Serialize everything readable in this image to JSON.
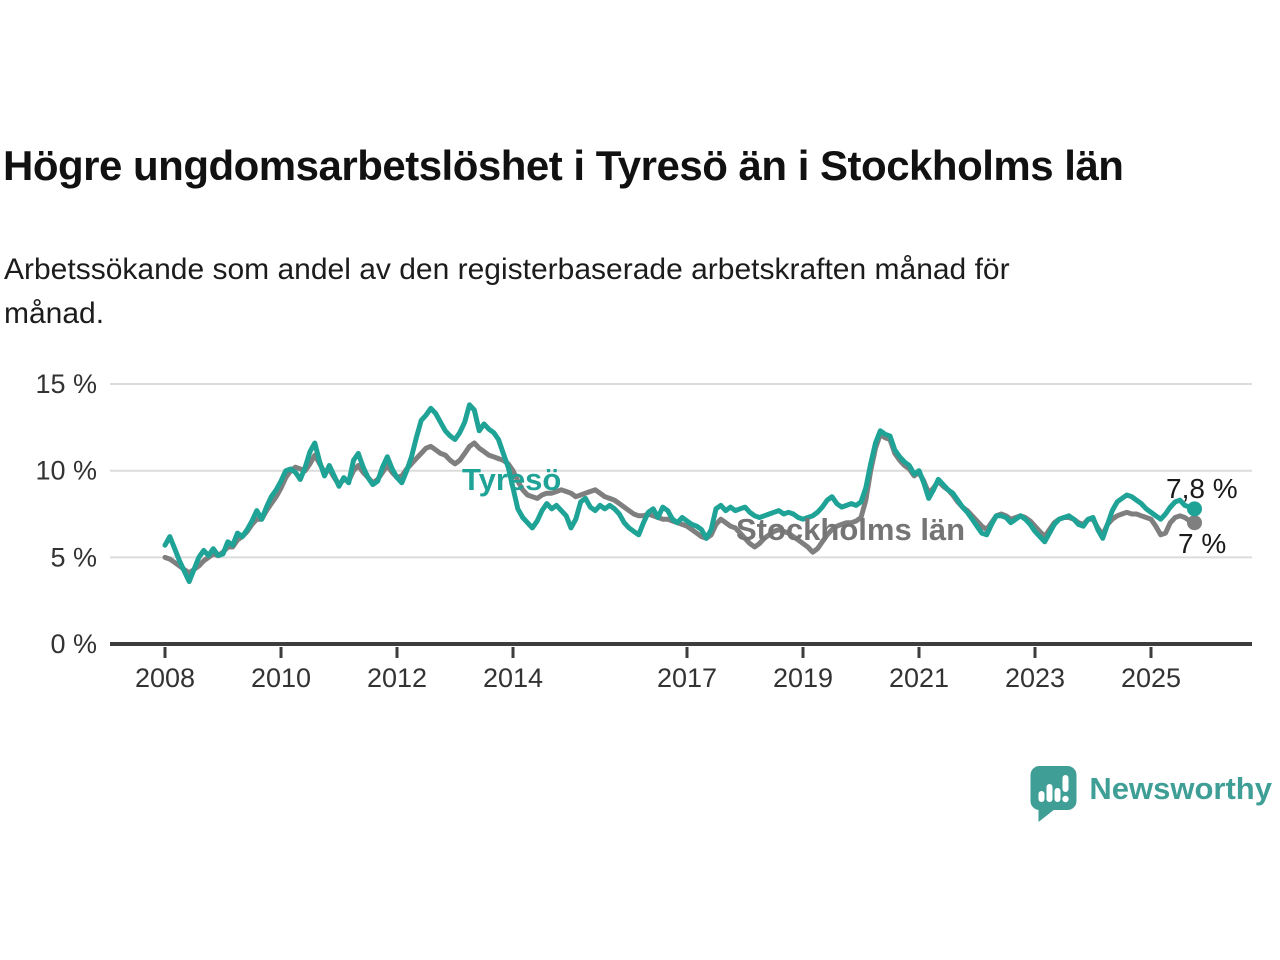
{
  "header": {
    "title": "Högre ungdomsarbetslöshet i Tyresö än i Stockholms län",
    "subtitle_line1": "Arbetssökande som andel av den registerbaserade arbetskraften månad för",
    "subtitle_line2": "månad."
  },
  "chart_data": {
    "type": "line",
    "unit": "%",
    "x_start_year": 2008,
    "x_interval_months": 1,
    "x_tick_years": [
      2008,
      2010,
      2012,
      2014,
      2017,
      2019,
      2021,
      2023,
      2025
    ],
    "x_tick_labels": [
      "2008",
      "2010",
      "2012",
      "2014",
      "2017",
      "2019",
      "2021",
      "2023",
      "2025"
    ],
    "y_tick_values": [
      0,
      5,
      10,
      15
    ],
    "y_tick_labels": [
      "0 %",
      "5 %",
      "10 %",
      "15 %"
    ],
    "ylim": [
      0,
      15
    ],
    "grid": "horizontal",
    "colors": {
      "tyreso": "#1fa396",
      "stockholm": "#7f7f7f",
      "axis": "#3d3d3d",
      "gridline": "#dcdcdc",
      "tick_text": "#333333",
      "end_label_text": "#1a1a1a"
    },
    "series": [
      {
        "name": "Stockholms län",
        "slug": "stockholms-lan",
        "color": "#7f7f7f",
        "label_color": "#757575",
        "end_label": "7 %",
        "end_value": 7.0,
        "values": [
          5.0,
          4.9,
          4.7,
          4.5,
          4.3,
          4.1,
          4.3,
          4.5,
          4.8,
          5.0,
          5.2,
          5.1,
          5.3,
          5.6,
          5.6,
          6.0,
          6.2,
          6.5,
          6.9,
          7.2,
          7.2,
          7.7,
          8.1,
          8.5,
          9.0,
          9.6,
          10.0,
          10.2,
          10.1,
          10.0,
          10.4,
          10.9,
          10.4,
          9.9,
          10.1,
          9.6,
          9.2,
          9.5,
          9.4,
          10.0,
          10.3,
          9.9,
          9.6,
          9.3,
          9.5,
          9.9,
          10.3,
          9.9,
          9.6,
          9.7,
          10.1,
          10.4,
          10.7,
          11.0,
          11.3,
          11.4,
          11.2,
          11.0,
          10.9,
          10.6,
          10.4,
          10.6,
          11.0,
          11.4,
          11.6,
          11.3,
          11.1,
          10.9,
          10.8,
          10.7,
          10.6,
          10.4,
          10.0,
          9.4,
          8.9,
          8.6,
          8.5,
          8.4,
          8.6,
          8.7,
          8.7,
          8.8,
          8.9,
          8.8,
          8.7,
          8.5,
          8.6,
          8.7,
          8.8,
          8.9,
          8.7,
          8.5,
          8.4,
          8.3,
          8.1,
          7.9,
          7.7,
          7.5,
          7.4,
          7.4,
          7.5,
          7.4,
          7.3,
          7.2,
          7.2,
          7.1,
          7.0,
          6.9,
          6.8,
          6.6,
          6.4,
          6.2,
          6.1,
          6.3,
          6.9,
          7.2,
          7.0,
          6.8,
          6.7,
          6.4,
          6.1,
          5.8,
          5.6,
          5.8,
          6.1,
          6.3,
          6.5,
          6.6,
          6.5,
          6.4,
          6.2,
          6.0,
          5.8,
          5.6,
          5.3,
          5.5,
          5.9,
          6.3,
          6.6,
          6.8,
          6.9,
          7.0,
          7.0,
          7.1,
          7.3,
          8.3,
          10.0,
          11.3,
          12.1,
          11.9,
          11.8,
          11.0,
          10.6,
          10.3,
          10.1,
          9.7,
          9.9,
          9.4,
          8.7,
          9.0,
          9.4,
          9.1,
          8.9,
          8.6,
          8.2,
          7.9,
          7.7,
          7.4,
          7.1,
          6.8,
          6.6,
          7.0,
          7.4,
          7.5,
          7.4,
          7.2,
          7.3,
          7.4,
          7.3,
          7.1,
          6.8,
          6.5,
          6.2,
          6.6,
          7.0,
          7.2,
          7.3,
          7.3,
          7.2,
          7.0,
          6.9,
          7.2,
          7.2,
          6.7,
          6.3,
          6.9,
          7.2,
          7.4,
          7.5,
          7.6,
          7.5,
          7.5,
          7.4,
          7.3,
          7.2,
          6.8,
          6.3,
          6.4,
          7.0,
          7.3,
          7.4,
          7.3,
          7.1,
          7.0
        ]
      },
      {
        "name": "Tyresö",
        "slug": "tyreso",
        "color": "#1fa396",
        "label_color": "#1fa396",
        "end_label": "7,8 %",
        "end_value": 7.8,
        "values": [
          5.7,
          6.2,
          5.5,
          4.8,
          4.2,
          3.6,
          4.3,
          5.0,
          5.4,
          5.1,
          5.5,
          5.1,
          5.2,
          5.9,
          5.7,
          6.4,
          6.2,
          6.6,
          7.1,
          7.7,
          7.2,
          7.9,
          8.5,
          8.9,
          9.4,
          10.0,
          10.1,
          9.9,
          9.5,
          10.2,
          11.1,
          11.6,
          10.5,
          9.7,
          10.3,
          9.7,
          9.1,
          9.6,
          9.3,
          10.6,
          11.0,
          10.2,
          9.6,
          9.2,
          9.4,
          10.2,
          10.8,
          10.1,
          9.6,
          9.3,
          10.0,
          10.8,
          11.9,
          12.9,
          13.2,
          13.6,
          13.3,
          12.8,
          12.3,
          12.0,
          11.8,
          12.2,
          12.8,
          13.8,
          13.5,
          12.3,
          12.7,
          12.4,
          12.2,
          11.8,
          11.0,
          10.2,
          9.0,
          7.8,
          7.3,
          7.0,
          6.7,
          7.1,
          7.7,
          8.1,
          7.8,
          8.0,
          7.7,
          7.4,
          6.7,
          7.2,
          8.2,
          8.4,
          7.9,
          7.7,
          8.0,
          7.8,
          8.0,
          7.8,
          7.5,
          7.0,
          6.7,
          6.5,
          6.3,
          7.0,
          7.6,
          7.8,
          7.3,
          7.9,
          7.7,
          7.2,
          7.0,
          7.3,
          7.1,
          6.9,
          6.8,
          6.6,
          6.1,
          6.6,
          7.8,
          8.0,
          7.7,
          7.9,
          7.7,
          7.8,
          7.9,
          7.6,
          7.4,
          7.3,
          7.4,
          7.5,
          7.6,
          7.7,
          7.5,
          7.6,
          7.5,
          7.3,
          7.2,
          7.3,
          7.4,
          7.6,
          7.9,
          8.3,
          8.5,
          8.1,
          7.9,
          8.0,
          8.1,
          8.0,
          8.2,
          9.0,
          10.4,
          11.6,
          12.3,
          12.1,
          12.0,
          11.2,
          10.8,
          10.5,
          10.3,
          9.8,
          10.0,
          9.3,
          8.4,
          8.9,
          9.5,
          9.2,
          8.9,
          8.7,
          8.3,
          7.9,
          7.6,
          7.2,
          6.8,
          6.4,
          6.3,
          6.9,
          7.4,
          7.4,
          7.3,
          7.0,
          7.2,
          7.4,
          7.2,
          6.9,
          6.5,
          6.2,
          5.9,
          6.4,
          6.9,
          7.2,
          7.3,
          7.4,
          7.2,
          6.9,
          6.8,
          7.2,
          7.3,
          6.6,
          6.1,
          6.9,
          7.7,
          8.2,
          8.4,
          8.6,
          8.5,
          8.3,
          8.1,
          7.8,
          7.6,
          7.4,
          7.2,
          7.5,
          7.9,
          8.2,
          8.3,
          8.0,
          7.9,
          7.8
        ]
      }
    ]
  },
  "branding": {
    "logo_text": "Newsworthy",
    "logo_color": "#3f9f96",
    "icon": "newsworthy-bar-chart-speech-bubble"
  }
}
